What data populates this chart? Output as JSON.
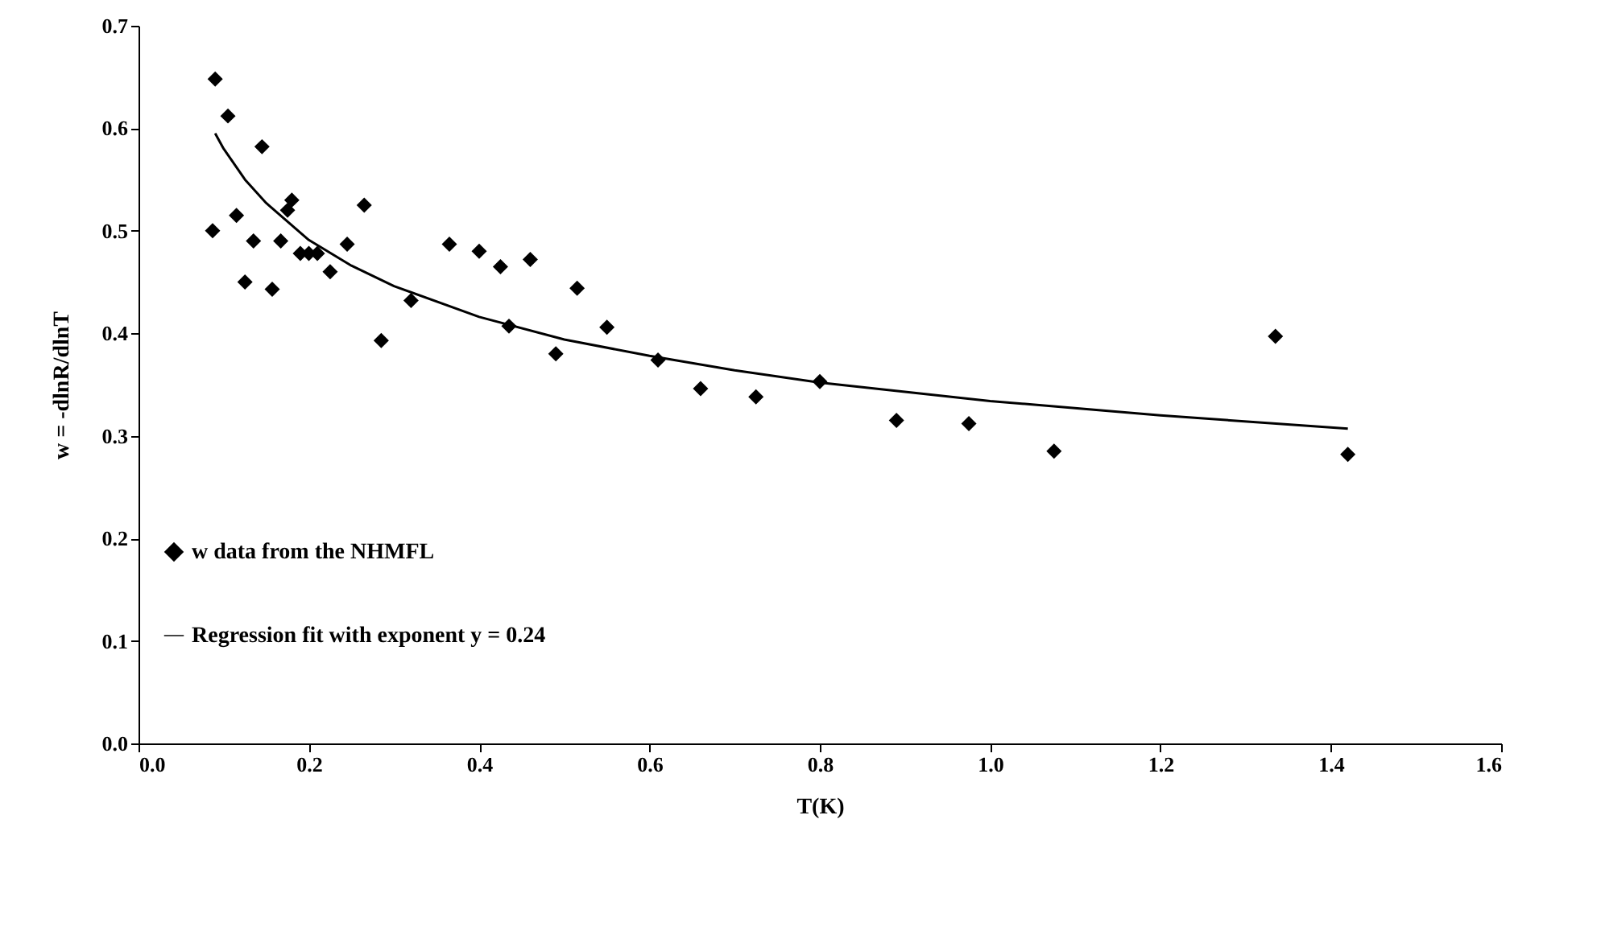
{
  "chart_data": {
    "type": "scatter",
    "xlabel": "T(K)",
    "ylabel": "w = -dlnR/dlnT",
    "xlim": [
      0,
      1.6
    ],
    "ylim": [
      0,
      0.7
    ],
    "xticks": [
      {
        "value": 0,
        "label": "0.0"
      },
      {
        "value": 0.2,
        "label": "0.2"
      },
      {
        "value": 0.4,
        "label": "0.4"
      },
      {
        "value": 0.6,
        "label": "0.6"
      },
      {
        "value": 0.8,
        "label": "0.8"
      },
      {
        "value": 1,
        "label": "1.0"
      },
      {
        "value": 1.2,
        "label": "1.2"
      },
      {
        "value": 1.4,
        "label": "1.4"
      },
      {
        "value": 1.6,
        "label": "1.6"
      }
    ],
    "yticks": [
      {
        "value": 0,
        "label": "0.0"
      },
      {
        "value": 0.1,
        "label": "0.1"
      },
      {
        "value": 0.2,
        "label": "0.2"
      },
      {
        "value": 0.3,
        "label": "0.3"
      },
      {
        "value": 0.4,
        "label": "0.4"
      },
      {
        "value": 0.5,
        "label": "0.5"
      },
      {
        "value": 0.6,
        "label": "0.6"
      },
      {
        "value": 0.7,
        "label": "0.7"
      }
    ],
    "grid": false,
    "legend": "bottom left",
    "series": [
      {
        "name": "w data from the NHMFL",
        "marker": "diamond",
        "color": "#000000",
        "x": [
          0.09,
          0.105,
          0.087,
          0.115,
          0.125,
          0.135,
          0.145,
          0.157,
          0.167,
          0.175,
          0.18,
          0.19,
          0.2,
          0.21,
          0.225,
          0.245,
          0.265,
          0.285,
          0.32,
          0.365,
          0.4,
          0.425,
          0.435,
          0.46,
          0.49,
          0.515,
          0.55,
          0.61,
          0.66,
          0.725,
          0.8,
          0.89,
          0.975,
          1.075,
          1.335,
          1.42
        ],
        "values": [
          0.648,
          0.612,
          0.5,
          0.515,
          0.45,
          0.49,
          0.582,
          0.443,
          0.49,
          0.52,
          0.53,
          0.478,
          0.478,
          0.478,
          0.46,
          0.487,
          0.525,
          0.393,
          0.432,
          0.487,
          0.48,
          0.465,
          0.407,
          0.472,
          0.38,
          0.444,
          0.406,
          0.374,
          0.346,
          0.338,
          0.353,
          0.315,
          0.312,
          0.285,
          0.397,
          0.282
        ]
      },
      {
        "name": "Regression fit with exponent y = 0.24",
        "type": "line",
        "marker": "none",
        "line_style": "solid",
        "color": "#000000",
        "x": [
          0.09,
          0.1,
          0.125,
          0.15,
          0.2,
          0.25,
          0.3,
          0.4,
          0.5,
          0.6,
          0.7,
          0.8,
          1.0,
          1.2,
          1.42
        ],
        "values": [
          0.595,
          0.58,
          0.55,
          0.527,
          0.491,
          0.466,
          0.446,
          0.416,
          0.394,
          0.378,
          0.364,
          0.352,
          0.334,
          0.32,
          0.307
        ]
      }
    ]
  }
}
